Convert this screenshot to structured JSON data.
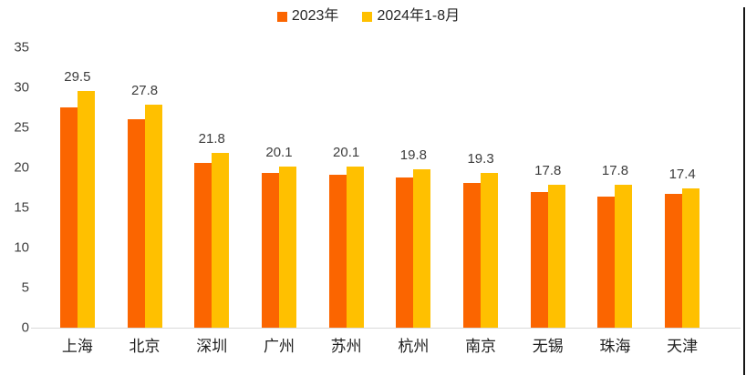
{
  "chart_data": {
    "type": "bar",
    "title": "",
    "xlabel": "",
    "ylabel": "",
    "categories": [
      "上海",
      "北京",
      "深圳",
      "广州",
      "苏州",
      "杭州",
      "南京",
      "无锡",
      "珠海",
      "天津"
    ],
    "series": [
      {
        "name": "2023年",
        "color": "#FB6500",
        "values": [
          27.5,
          26.0,
          20.6,
          19.3,
          19.1,
          18.8,
          18.1,
          16.9,
          16.4,
          16.7
        ]
      },
      {
        "name": "2024年1-8月",
        "color": "#FFC000",
        "values": [
          29.5,
          27.8,
          21.8,
          20.1,
          20.1,
          19.8,
          19.3,
          17.8,
          17.8,
          17.4
        ]
      }
    ],
    "data_labels": [
      "29.5",
      "27.8",
      "21.8",
      "20.1",
      "20.1",
      "19.8",
      "19.3",
      "17.8",
      "17.8",
      "17.4"
    ],
    "data_labels_series": "2024年1-8月",
    "y_ticks": [
      0,
      5,
      10,
      15,
      20,
      25,
      30,
      35
    ],
    "ylim": [
      0,
      35
    ],
    "grid": false,
    "legend_position": "top"
  },
  "legend": {
    "items": [
      {
        "label": "2023年",
        "color": "#FB6500"
      },
      {
        "label": "2024年1-8月",
        "color": "#FFC000"
      }
    ]
  },
  "colors": {
    "series_2023": "#FB6500",
    "series_2024": "#FFC000",
    "axis_line": "#d9d9d9",
    "axis_text": "#404040",
    "category_text": "#1f1f1f",
    "data_label_text": "#3d3d3d",
    "background": "#ffffff"
  }
}
